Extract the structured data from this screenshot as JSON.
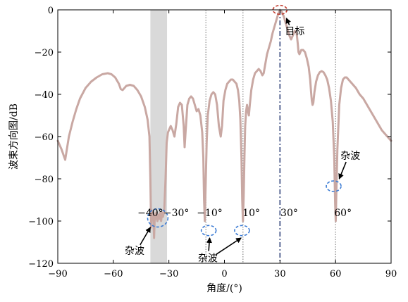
{
  "chart_data": {
    "type": "line",
    "xlabel": "角度/(°)",
    "ylabel": "波束方向图/dB",
    "xlim": [
      -90,
      90
    ],
    "ylim": [
      -120,
      0
    ],
    "xticks": [
      -90,
      -60,
      -30,
      0,
      30,
      60,
      90
    ],
    "yticks": [
      0,
      -20,
      -40,
      -60,
      -80,
      -100,
      -120
    ],
    "xtick_labels": [
      "−90",
      "−60",
      "−30",
      "0",
      "30",
      "60",
      "90"
    ],
    "ytick_labels": [
      "0",
      "−20",
      "−40",
      "−60",
      "−80",
      "−100",
      "−120"
    ],
    "grid": false,
    "series": [
      {
        "color": "#c9a8a3",
        "points": [
          [
            -90,
            -62
          ],
          [
            -88,
            -66
          ],
          [
            -86,
            -71
          ],
          [
            -84,
            -60
          ],
          [
            -82,
            -53
          ],
          [
            -80,
            -47
          ],
          [
            -78,
            -42
          ],
          [
            -75,
            -37
          ],
          [
            -72,
            -34
          ],
          [
            -69,
            -32
          ],
          [
            -66,
            -30.5
          ],
          [
            -63,
            -30
          ],
          [
            -61,
            -30.5
          ],
          [
            -59,
            -32
          ],
          [
            -57,
            -35
          ],
          [
            -56,
            -37.5
          ],
          [
            -55,
            -38
          ],
          [
            -54,
            -37
          ],
          [
            -53,
            -36
          ],
          [
            -51,
            -35.5
          ],
          [
            -49,
            -36
          ],
          [
            -47,
            -38
          ],
          [
            -45,
            -41
          ],
          [
            -43,
            -46
          ],
          [
            -41.5,
            -52
          ],
          [
            -40.5,
            -60
          ],
          [
            -40,
            -80
          ],
          [
            -39.6,
            -103
          ],
          [
            -39.2,
            -95
          ],
          [
            -38.8,
            -99
          ],
          [
            -38.4,
            -96
          ],
          [
            -38,
            -108
          ],
          [
            -37.6,
            -97
          ],
          [
            -37.2,
            -99
          ],
          [
            -36.8,
            -96
          ],
          [
            -36.2,
            -100
          ],
          [
            -35.7,
            -97
          ],
          [
            -35.2,
            -99
          ],
          [
            -34.7,
            -96
          ],
          [
            -34.2,
            -100
          ],
          [
            -33.7,
            -96
          ],
          [
            -33.2,
            -98
          ],
          [
            -32.5,
            -95
          ],
          [
            -31.8,
            -80
          ],
          [
            -31.2,
            -63
          ],
          [
            -30.5,
            -58
          ],
          [
            -29,
            -55
          ],
          [
            -28,
            -57
          ],
          [
            -27,
            -60
          ],
          [
            -26,
            -54
          ],
          [
            -25,
            -46
          ],
          [
            -24,
            -44
          ],
          [
            -23,
            -45
          ],
          [
            -22,
            -55
          ],
          [
            -21.5,
            -65
          ],
          [
            -21,
            -58
          ],
          [
            -20,
            -45
          ],
          [
            -19,
            -42
          ],
          [
            -18,
            -41
          ],
          [
            -17,
            -42
          ],
          [
            -16,
            -45
          ],
          [
            -15,
            -48
          ],
          [
            -14,
            -47
          ],
          [
            -13,
            -50
          ],
          [
            -12,
            -58
          ],
          [
            -11.4,
            -70
          ],
          [
            -11,
            -90
          ],
          [
            -10.6,
            -100
          ],
          [
            -10.2,
            -85
          ],
          [
            -9.6,
            -63
          ],
          [
            -9,
            -50
          ],
          [
            -8,
            -43
          ],
          [
            -7,
            -40
          ],
          [
            -6,
            -39
          ],
          [
            -5,
            -40
          ],
          [
            -4,
            -45
          ],
          [
            -3,
            -55
          ],
          [
            -2,
            -60
          ],
          [
            -1.3,
            -55
          ],
          [
            -0.5,
            -43
          ],
          [
            0.5,
            -38
          ],
          [
            1.5,
            -35
          ],
          [
            2.5,
            -34
          ],
          [
            3.5,
            -33
          ],
          [
            4.5,
            -33
          ],
          [
            5.5,
            -34
          ],
          [
            6.5,
            -35
          ],
          [
            7.3,
            -38
          ],
          [
            8,
            -43
          ],
          [
            8.6,
            -52
          ],
          [
            9.2,
            -70
          ],
          [
            9.6,
            -90
          ],
          [
            10,
            -100
          ],
          [
            10.4,
            -88
          ],
          [
            10.8,
            -70
          ],
          [
            11.2,
            -55
          ],
          [
            11.7,
            -48
          ],
          [
            12.2,
            -45
          ],
          [
            12.7,
            -48
          ],
          [
            13.2,
            -50
          ],
          [
            13.7,
            -45
          ],
          [
            14.5,
            -38
          ],
          [
            15.5,
            -33
          ],
          [
            16.5,
            -30
          ],
          [
            17.5,
            -29
          ],
          [
            18.5,
            -28
          ],
          [
            19.5,
            -29
          ],
          [
            20.5,
            -31
          ],
          [
            21.2,
            -30
          ],
          [
            22,
            -26
          ],
          [
            23,
            -21
          ],
          [
            24,
            -18
          ],
          [
            25,
            -15
          ],
          [
            26,
            -11
          ],
          [
            27,
            -8
          ],
          [
            28,
            -5
          ],
          [
            29,
            -2
          ],
          [
            30,
            0
          ],
          [
            31,
            -1
          ],
          [
            32,
            -3
          ],
          [
            33,
            -6
          ],
          [
            34,
            -9
          ],
          [
            35,
            -12
          ],
          [
            36,
            -14
          ],
          [
            37,
            -12
          ],
          [
            38,
            -10
          ],
          [
            39,
            -11
          ],
          [
            39.6,
            -16
          ],
          [
            40,
            -20
          ],
          [
            40.5,
            -21
          ],
          [
            41.5,
            -19
          ],
          [
            42.5,
            -19
          ],
          [
            43.5,
            -20
          ],
          [
            44.5,
            -23
          ],
          [
            45.5,
            -27
          ],
          [
            46.3,
            -33
          ],
          [
            46.8,
            -39
          ],
          [
            47.2,
            -43
          ],
          [
            47.6,
            -45
          ],
          [
            48,
            -44
          ],
          [
            48.6,
            -39
          ],
          [
            49.5,
            -34
          ],
          [
            50.5,
            -31
          ],
          [
            51.5,
            -29.5
          ],
          [
            52.5,
            -29
          ],
          [
            53.5,
            -29.5
          ],
          [
            54.5,
            -31
          ],
          [
            55.5,
            -33
          ],
          [
            56.5,
            -37
          ],
          [
            57.5,
            -43
          ],
          [
            58.5,
            -53
          ],
          [
            59.3,
            -70
          ],
          [
            59.8,
            -92
          ],
          [
            60.1,
            -100
          ],
          [
            60.4,
            -88
          ],
          [
            61,
            -66
          ],
          [
            62,
            -45
          ],
          [
            63,
            -37
          ],
          [
            64,
            -33
          ],
          [
            65,
            -32
          ],
          [
            66,
            -32
          ],
          [
            67,
            -33
          ],
          [
            69,
            -35
          ],
          [
            71,
            -37
          ],
          [
            73,
            -40
          ],
          [
            75,
            -42
          ],
          [
            77,
            -45
          ],
          [
            79,
            -48
          ],
          [
            81,
            -51
          ],
          [
            83,
            -54
          ],
          [
            85,
            -57
          ],
          [
            87,
            -59
          ],
          [
            89,
            -61
          ],
          [
            90,
            -62
          ]
        ]
      }
    ],
    "shaded_band": {
      "x_from": -40,
      "x_to": -31,
      "color": "#d9d9d9"
    },
    "vertical_lines": [
      {
        "x": -10,
        "style": "dotted",
        "color": "#999999"
      },
      {
        "x": 10,
        "style": "dotted",
        "color": "#999999"
      },
      {
        "x": 60,
        "style": "dotted",
        "color": "#999999"
      },
      {
        "x": 30,
        "style": "dash-dot",
        "color": "#4a5a8a"
      }
    ],
    "degree_labels": [
      {
        "x": -40,
        "y": -96,
        "text": "−40°"
      },
      {
        "x": -26,
        "y": -96,
        "text": "−30°"
      },
      {
        "x": -8,
        "y": -96,
        "text": "−10°"
      },
      {
        "x": 14.5,
        "y": -96,
        "text": "10°"
      },
      {
        "x": 35,
        "y": -96,
        "text": "30°"
      },
      {
        "x": 64,
        "y": -96,
        "text": "60°"
      }
    ],
    "ellipses": [
      {
        "cx": 30,
        "cy": 0,
        "rx": 3.8,
        "ry": 2.1,
        "color": "#c0392b"
      },
      {
        "cx": -36,
        "cy": -98.5,
        "rx": 5.5,
        "ry": 4.3,
        "color": "#3b7bd4"
      },
      {
        "cx": -8.5,
        "cy": -104.5,
        "rx": 4,
        "ry": 2.4,
        "color": "#3b7bd4"
      },
      {
        "cx": 9.5,
        "cy": -104.5,
        "rx": 4,
        "ry": 2.4,
        "color": "#3b7bd4"
      },
      {
        "cx": 59,
        "cy": -83.5,
        "rx": 4,
        "ry": 2.5,
        "color": "#3b7bd4"
      }
    ],
    "annotations": [
      {
        "text": "目标",
        "x": 38,
        "y": -10,
        "arrow_to": [
          33.5,
          -4
        ]
      },
      {
        "text": "杂波",
        "x": 68,
        "y": -69,
        "arrow_to": [
          62,
          -80
        ]
      },
      {
        "text": "杂波",
        "x": -48.5,
        "y": -114,
        "arrow_to": [
          -40,
          -103
        ]
      },
      {
        "text": "杂波",
        "x": -9,
        "y": -117.5,
        "arrow_to": [
          -8,
          -108
        ],
        "arrow_to_2": [
          9,
          -108
        ]
      }
    ]
  }
}
